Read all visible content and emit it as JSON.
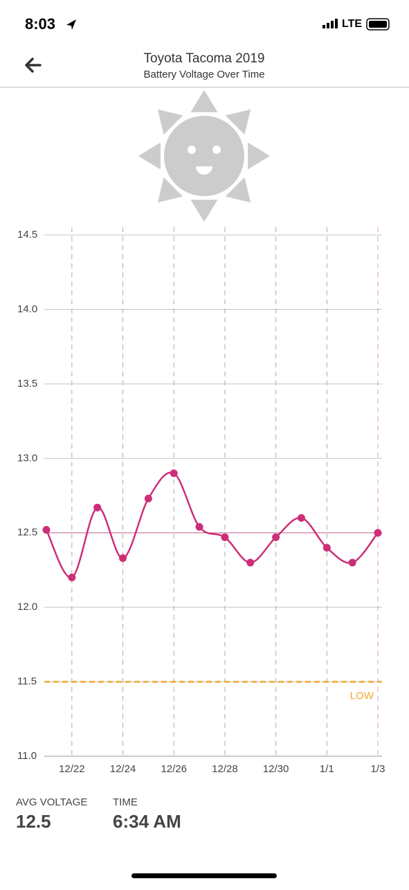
{
  "status_bar": {
    "time": "8:03",
    "network": "LTE"
  },
  "header": {
    "title": "Toyota Tacoma 2019",
    "subtitle": "Battery Voltage Over Time"
  },
  "chart_data": {
    "type": "line",
    "categories": [
      null,
      "12/22",
      null,
      "12/24",
      null,
      "12/26",
      null,
      "12/28",
      null,
      "12/30",
      null,
      "1/1",
      null,
      "1/3"
    ],
    "values": [
      12.52,
      12.2,
      12.67,
      12.33,
      12.73,
      12.9,
      12.54,
      12.47,
      12.3,
      12.47,
      12.6,
      12.4,
      12.3,
      12.5
    ],
    "color": "#cc2e78",
    "ylim": [
      11,
      14.5
    ],
    "yticks": [
      {
        "value": 11,
        "label": "11.0"
      },
      11.5,
      {
        "value": 12,
        "label": "12.0"
      },
      12.5,
      {
        "value": 13,
        "label": "13.0"
      },
      13.5,
      {
        "value": 14,
        "label": "14.0"
      },
      14.5
    ],
    "grid": true,
    "threshold": {
      "value": 11.5,
      "label": "LOW",
      "color": "#f0a830"
    }
  },
  "footer": {
    "avg_voltage": {
      "label": "AVG VOLTAGE",
      "value": 12.5
    },
    "time": {
      "label": "TIME",
      "value": "6:34 AM"
    }
  }
}
